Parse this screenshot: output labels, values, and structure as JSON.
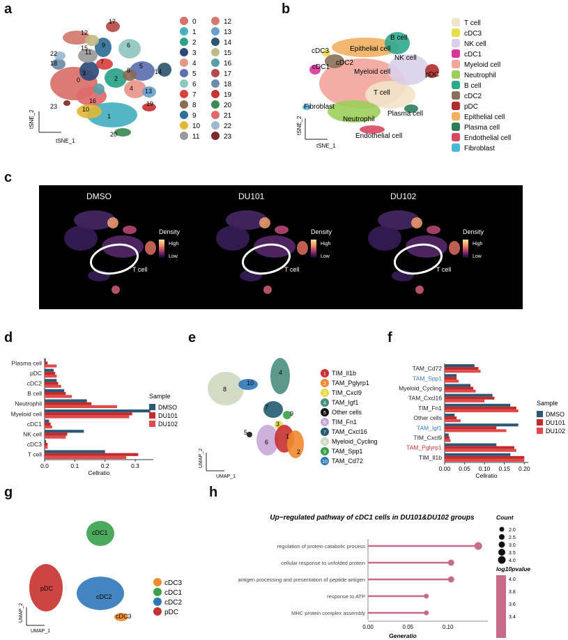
{
  "panel_labels": {
    "a": "a",
    "b": "b",
    "c": "c",
    "d": "d",
    "e": "e",
    "f": "f",
    "g": "g",
    "h": "h"
  },
  "panel_a": {
    "xlabel": "tSNE_1",
    "ylabel": "tSNE_2",
    "clusters": [
      {
        "id": "0",
        "color": "#d9706a"
      },
      {
        "id": "1",
        "color": "#44b0c0"
      },
      {
        "id": "2",
        "color": "#2aa388"
      },
      {
        "id": "3",
        "color": "#2f4a7a"
      },
      {
        "id": "4",
        "color": "#e8958a"
      },
      {
        "id": "5",
        "color": "#5c6fb0"
      },
      {
        "id": "6",
        "color": "#8fc7c0"
      },
      {
        "id": "7",
        "color": "#d8413e"
      },
      {
        "id": "8",
        "color": "#8a6a54"
      },
      {
        "id": "9",
        "color": "#2f6e95"
      },
      {
        "id": "10",
        "color": "#e0b83a"
      },
      {
        "id": "11",
        "color": "#9a9a9a"
      },
      {
        "id": "12",
        "color": "#d2786f"
      },
      {
        "id": "13",
        "color": "#6aa0cf"
      },
      {
        "id": "14",
        "color": "#2e566e"
      },
      {
        "id": "15",
        "color": "#c2ba84"
      },
      {
        "id": "16",
        "color": "#5a9ea8"
      },
      {
        "id": "17",
        "color": "#b54a4a"
      },
      {
        "id": "18",
        "color": "#6e8aa8"
      },
      {
        "id": "19",
        "color": "#c93333"
      },
      {
        "id": "20",
        "color": "#3b8a54"
      },
      {
        "id": "21",
        "color": "#e06a6a"
      },
      {
        "id": "22",
        "color": "#9ab8d0"
      },
      {
        "id": "23",
        "color": "#7b2b2b"
      }
    ],
    "cluster_labels": [
      "17",
      "12",
      "6",
      "22",
      "11",
      "15",
      "9",
      "7",
      "18",
      "3",
      "5",
      "14",
      "2",
      "0",
      "16",
      "8",
      "4",
      "13",
      "19",
      "23",
      "10",
      "1",
      "20"
    ]
  },
  "panel_b": {
    "xlabel": "tSNE_1",
    "ylabel": "tSNE_2",
    "legend": [
      {
        "name": "T cell",
        "color": "#f2e3c8"
      },
      {
        "name": "cDC3",
        "color": "#e8dc4a"
      },
      {
        "name": "NK cell",
        "color": "#d9d0ea"
      },
      {
        "name": "cDC1",
        "color": "#d9359c"
      },
      {
        "name": "Myeloid cell",
        "color": "#f2a49a"
      },
      {
        "name": "Neutrophil",
        "color": "#9ccf5a"
      },
      {
        "name": "B cell",
        "color": "#2fa88c"
      },
      {
        "name": "cDC2",
        "color": "#8a7058"
      },
      {
        "name": "pDC",
        "color": "#b02d2d"
      },
      {
        "name": "Epithelial cell",
        "color": "#f2b060"
      },
      {
        "name": "Plasma cell",
        "color": "#2e7e5a"
      },
      {
        "name": "Endothelial cell",
        "color": "#d84860"
      },
      {
        "name": "Fibroblast",
        "color": "#4ab8d8"
      }
    ],
    "map_labels": {
      "b_cell": "B cell",
      "cdc3": "cDC3",
      "epithelial": "Epithelial cell",
      "nk": "NK cell",
      "cdc1": "cDC1",
      "cdc2": "cDC2",
      "myeloid": "Myeloid cell",
      "pdc": "pDC",
      "tcell": "T cell",
      "fibroblast": "Fibroblast",
      "neutrophil": "Neutrophil",
      "plasma": "Plasma cell",
      "endothelial": "Endothelial cell"
    }
  },
  "panel_c": {
    "samples": [
      "DMSO",
      "DU101",
      "DU102"
    ],
    "legend_title": "Density",
    "legend_high": "High",
    "legend_low": "Low",
    "annotation": "T cell"
  },
  "panel_d": {
    "chart_data": {
      "type": "bar",
      "orientation": "horizontal",
      "categories": [
        "Plasma cell",
        "pDC",
        "cDC2",
        "B cell",
        "Neutrophil",
        "Myeloid cell",
        "cDC1",
        "NK cell",
        "cDC3",
        "T cell"
      ],
      "series": [
        {
          "name": "DMSO",
          "color": "#2d5874",
          "values": [
            0.004,
            0.03,
            0.04,
            0.065,
            0.14,
            0.35,
            0.015,
            0.13,
            0.005,
            0.2
          ]
        },
        {
          "name": "DU101",
          "color": "#c42a2a",
          "values": [
            0.01,
            0.035,
            0.045,
            0.07,
            0.155,
            0.29,
            0.02,
            0.075,
            0.01,
            0.31
          ]
        },
        {
          "name": "DU102",
          "color": "#e14a4a",
          "values": [
            0.04,
            0.04,
            0.055,
            0.09,
            0.24,
            0.28,
            0.025,
            0.07,
            0.01,
            0.27
          ]
        }
      ],
      "xlabel": "Cellratio",
      "xlim": [
        0,
        0.36
      ],
      "xticks": [
        "0.0",
        "0.1",
        "0.2",
        "0.3"
      ],
      "legend_title": "Sample"
    }
  },
  "panel_e": {
    "xlabel": "UMAP_1",
    "ylabel": "UMAP_2",
    "legend": [
      {
        "num": "1",
        "name": "TIM_Il1b",
        "color": "#c8312f"
      },
      {
        "num": "2",
        "name": "TAM_Pglyrp1",
        "color": "#f08a30"
      },
      {
        "num": "3",
        "name": "TIM_Cxcl9",
        "color": "#e8d84a"
      },
      {
        "num": "4",
        "name": "TAM_Igf1",
        "color": "#4a8e80"
      },
      {
        "num": "5",
        "name": "Other cells",
        "color": "#111111"
      },
      {
        "num": "6",
        "name": "TIM_Fn1",
        "color": "#c8a8d8"
      },
      {
        "num": "7",
        "name": "TAM_Cxcl16",
        "color": "#245a70"
      },
      {
        "num": "8",
        "name": "Myeloid_Cycling",
        "color": "#cfd8c0"
      },
      {
        "num": "9",
        "name": "TAM_Spp1",
        "color": "#3aa04a"
      },
      {
        "num": "10",
        "name": "TAM_Cd72",
        "color": "#2f78b8"
      }
    ]
  },
  "panel_f": {
    "chart_data": {
      "type": "bar",
      "orientation": "horizontal",
      "categories": [
        "TAM_Cd72",
        "TAM_Spp1",
        "Myeloid_Cycling",
        "TAM_Cxcl16",
        "TIM_Fn1",
        "Other cells",
        "TAM_Igf1",
        "TIM_Cxcl9",
        "TAM_Pglyrp1",
        "TIM_Il1b"
      ],
      "category_colors": [
        "#222",
        "#3a78c0",
        "#222",
        "#222",
        "#222",
        "#222",
        "#3a78c0",
        "#222",
        "#d03030",
        "#222"
      ],
      "series": [
        {
          "name": "DMSO",
          "color": "#2d5874",
          "values": [
            0.075,
            0.03,
            0.065,
            0.12,
            0.165,
            0.025,
            0.185,
            0.01,
            0.13,
            0.165
          ]
        },
        {
          "name": "DU101",
          "color": "#c42a2a",
          "values": [
            0.085,
            0.03,
            0.072,
            0.125,
            0.18,
            0.03,
            0.13,
            0.012,
            0.175,
            0.2
          ]
        },
        {
          "name": "DU102",
          "color": "#e14a4a",
          "values": [
            0.09,
            0.035,
            0.078,
            0.1,
            0.185,
            0.04,
            0.155,
            0.015,
            0.18,
            0.2
          ]
        }
      ],
      "xlabel": "Cellratio",
      "xlim": [
        0,
        0.21
      ],
      "xticks": [
        "0.00",
        "0.05",
        "0.10",
        "0.15",
        "0.20"
      ],
      "legend_title": "Sample"
    }
  },
  "panel_g": {
    "xlabel": "UMAP_1",
    "ylabel": "UMAP_2",
    "legend": [
      {
        "name": "cDC3",
        "color": "#f08a30"
      },
      {
        "name": "cDC1",
        "color": "#3aa04a"
      },
      {
        "name": "cDC2",
        "color": "#2f78b8"
      },
      {
        "name": "pDC",
        "color": "#c8312f"
      }
    ],
    "map_labels": {
      "cdc1": "cDC1",
      "pdc": "pDC",
      "cdc2": "cDC2",
      "cdc3": "cDC3"
    }
  },
  "panel_h": {
    "chart_data": {
      "type": "scatter",
      "title": "Up−regulated pathway of cDC1 cells in DU101&DU102 groups",
      "categories": [
        "regulation of protein catabolic process",
        "cellular response to unfolded protein",
        "antigen processing and presentation of peptide antigen",
        "response to ATP",
        "MHC protein complex assembly"
      ],
      "generatio": [
        0.138,
        0.104,
        0.104,
        0.073,
        0.073
      ],
      "count": [
        4,
        3,
        3,
        2,
        2
      ],
      "xlabel": "Generatio",
      "xlim": [
        0,
        0.15
      ],
      "xticks": [
        "0.00",
        "0.05",
        "0.10"
      ],
      "size_legend_title": "Count",
      "size_legend": [
        "2.0",
        "2.5",
        "3.0",
        "3.5",
        "4.0"
      ],
      "color_legend_title": "log10pvalue",
      "color_legend": [
        "4.0",
        "3.8",
        "3.6",
        "3.4"
      ],
      "color": "#c86a8a"
    }
  }
}
